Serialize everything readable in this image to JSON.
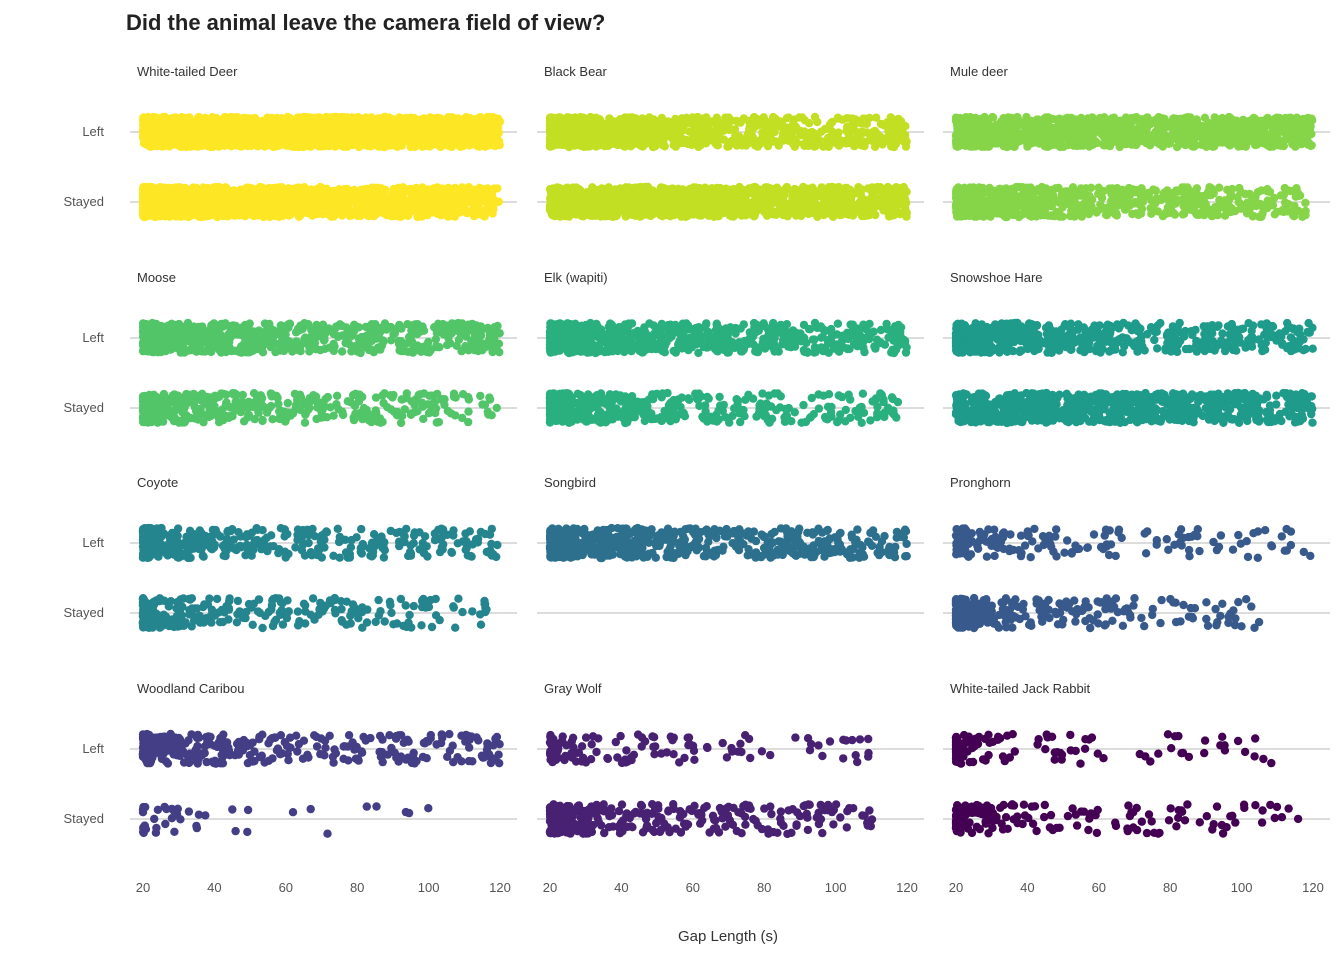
{
  "chart_data": {
    "type": "scatter",
    "title": "Did the animal leave the camera field of view?",
    "xlabel": "Gap Length (s)",
    "ylabel": "",
    "xlim": [
      20,
      120
    ],
    "xticks": [
      "20",
      "40",
      "60",
      "80",
      "100",
      "120"
    ],
    "categories": [
      "Left",
      "Stayed"
    ],
    "jitter": true,
    "grid": "horizontal only",
    "panels": [
      {
        "name": "White-tailed Deer",
        "color": "#FDE725",
        "left": {
          "n": 2200,
          "density": "dense",
          "xmax": 120
        },
        "stayed": {
          "n": 1500,
          "density": "dense-decaying",
          "xmax": 120
        }
      },
      {
        "name": "Black Bear",
        "color": "#C2DF23",
        "left": {
          "n": 900,
          "density": "dense-decaying",
          "xmax": 120
        },
        "stayed": {
          "n": 1300,
          "density": "dense",
          "xmax": 120
        }
      },
      {
        "name": "Mule deer",
        "color": "#86D549",
        "left": {
          "n": 1000,
          "density": "dense",
          "xmax": 120
        },
        "stayed": {
          "n": 700,
          "density": "dense-decaying",
          "xmax": 118
        }
      },
      {
        "name": "Moose",
        "color": "#52C569",
        "left": {
          "n": 700,
          "density": "dense-decaying",
          "xmax": 120
        },
        "stayed": {
          "n": 450,
          "density": "decaying",
          "xmax": 120
        }
      },
      {
        "name": "Elk (wapiti)",
        "color": "#2AB07F",
        "left": {
          "n": 650,
          "density": "dense-decaying",
          "xmax": 120
        },
        "stayed": {
          "n": 420,
          "density": "decaying",
          "xmax": 118
        }
      },
      {
        "name": "Snowshoe Hare",
        "color": "#1E9B8A",
        "left": {
          "n": 600,
          "density": "dense-decaying",
          "xmax": 120
        },
        "stayed": {
          "n": 800,
          "density": "dense",
          "xmax": 120
        }
      },
      {
        "name": "Coyote",
        "color": "#25858E",
        "left": {
          "n": 380,
          "density": "decaying",
          "xmax": 120
        },
        "stayed": {
          "n": 300,
          "density": "steep",
          "xmax": 118
        }
      },
      {
        "name": "Songbird",
        "color": "#2D708E",
        "left": {
          "n": 600,
          "density": "dense-decaying",
          "xmax": 120
        },
        "stayed": {
          "n": 0,
          "density": "none",
          "xmax": 0
        }
      },
      {
        "name": "Pronghorn",
        "color": "#38598C",
        "left": {
          "n": 160,
          "density": "decaying",
          "xmax": 120
        },
        "stayed": {
          "n": 280,
          "density": "steep",
          "xmax": 105
        }
      },
      {
        "name": "Woodland Caribou",
        "color": "#433E85",
        "left": {
          "n": 330,
          "density": "decaying",
          "xmax": 120
        },
        "stayed": {
          "n": 45,
          "density": "steep",
          "xmax": 102
        }
      },
      {
        "name": "Gray Wolf",
        "color": "#482173",
        "left": {
          "n": 120,
          "density": "decaying",
          "xmax": 113
        },
        "stayed": {
          "n": 300,
          "density": "decaying",
          "xmax": 112
        }
      },
      {
        "name": "White-tailed Jack Rabbit",
        "color": "#440154",
        "left": {
          "n": 110,
          "density": "steep",
          "xmax": 120
        },
        "stayed": {
          "n": 170,
          "density": "steep",
          "xmax": 117
        }
      }
    ]
  }
}
